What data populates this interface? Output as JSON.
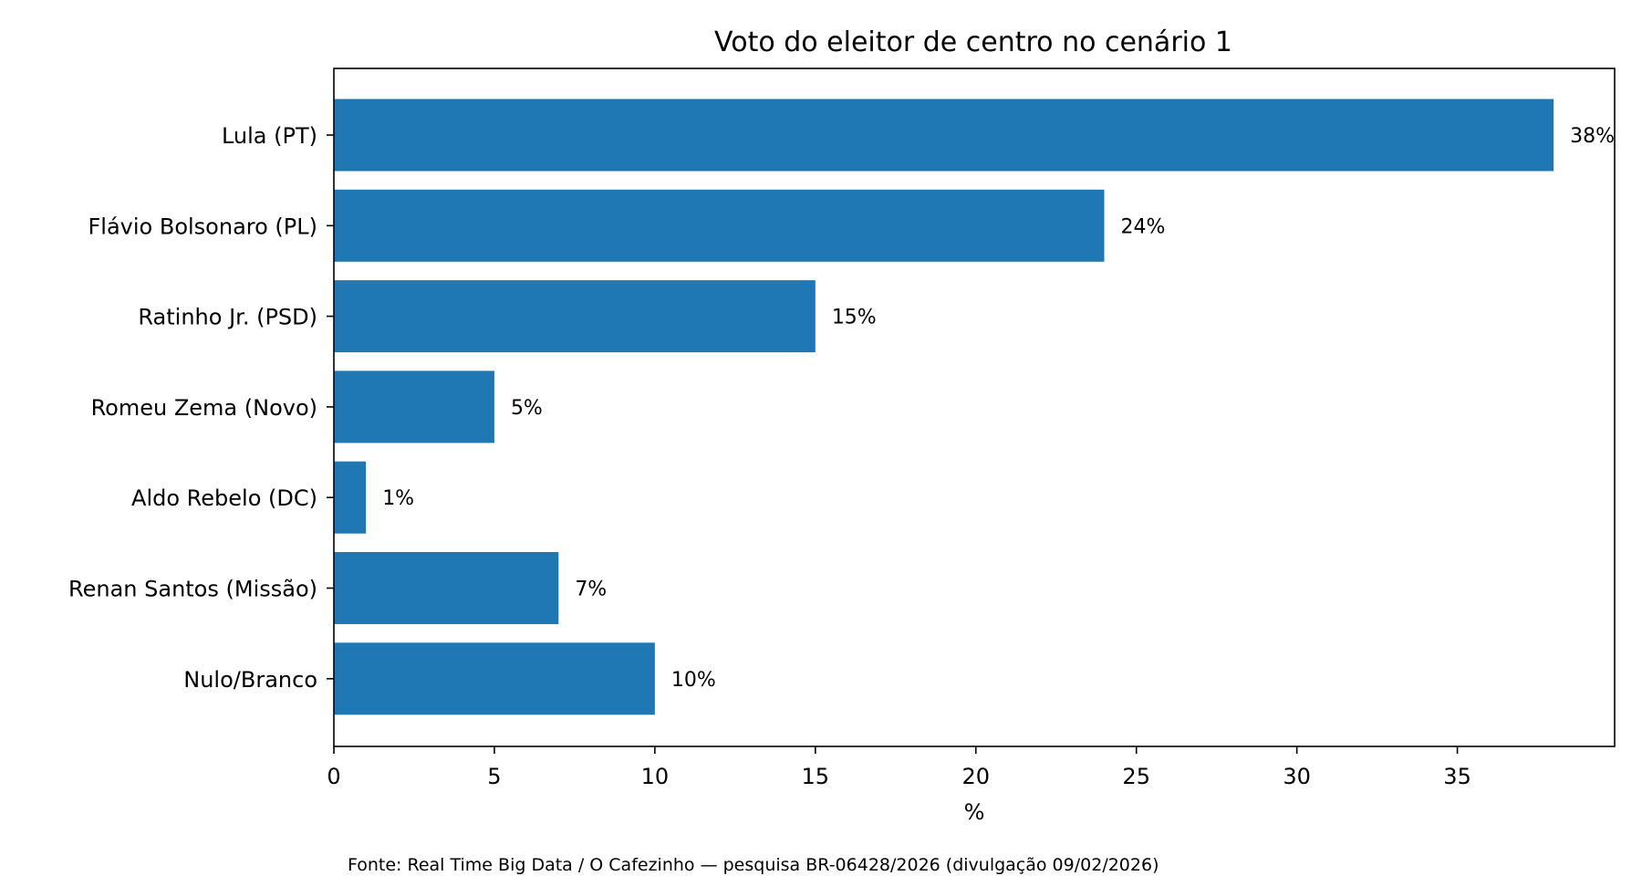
{
  "chart_data": {
    "type": "bar",
    "orientation": "horizontal",
    "title": "Voto do eleitor de centro no cenário 1",
    "xlabel": "%",
    "ylabel": "",
    "categories": [
      "Lula (PT)",
      "Flávio Bolsonaro (PL)",
      "Ratinho Jr. (PSD)",
      "Romeu Zema (Novo)",
      "Aldo Rebelo (DC)",
      "Renan Santos (Missão)",
      "Nulo/Branco"
    ],
    "values": [
      38,
      24,
      15,
      5,
      1,
      7,
      10
    ],
    "data_labels": [
      "38%",
      "24%",
      "15%",
      "5%",
      "1%",
      "7%",
      "10%"
    ],
    "xlim": [
      0,
      39.9
    ],
    "xticks": [
      0,
      5,
      10,
      15,
      20,
      25,
      30,
      35
    ],
    "xtick_labels": [
      "0",
      "5",
      "10",
      "15",
      "20",
      "25",
      "30",
      "35"
    ],
    "grid": false,
    "bar_color": "#1f77b4",
    "source": "Fonte: Real Time Big Data / O Cafezinho — pesquisa BR-06428/2026 (divulgação 09/02/2026)"
  }
}
